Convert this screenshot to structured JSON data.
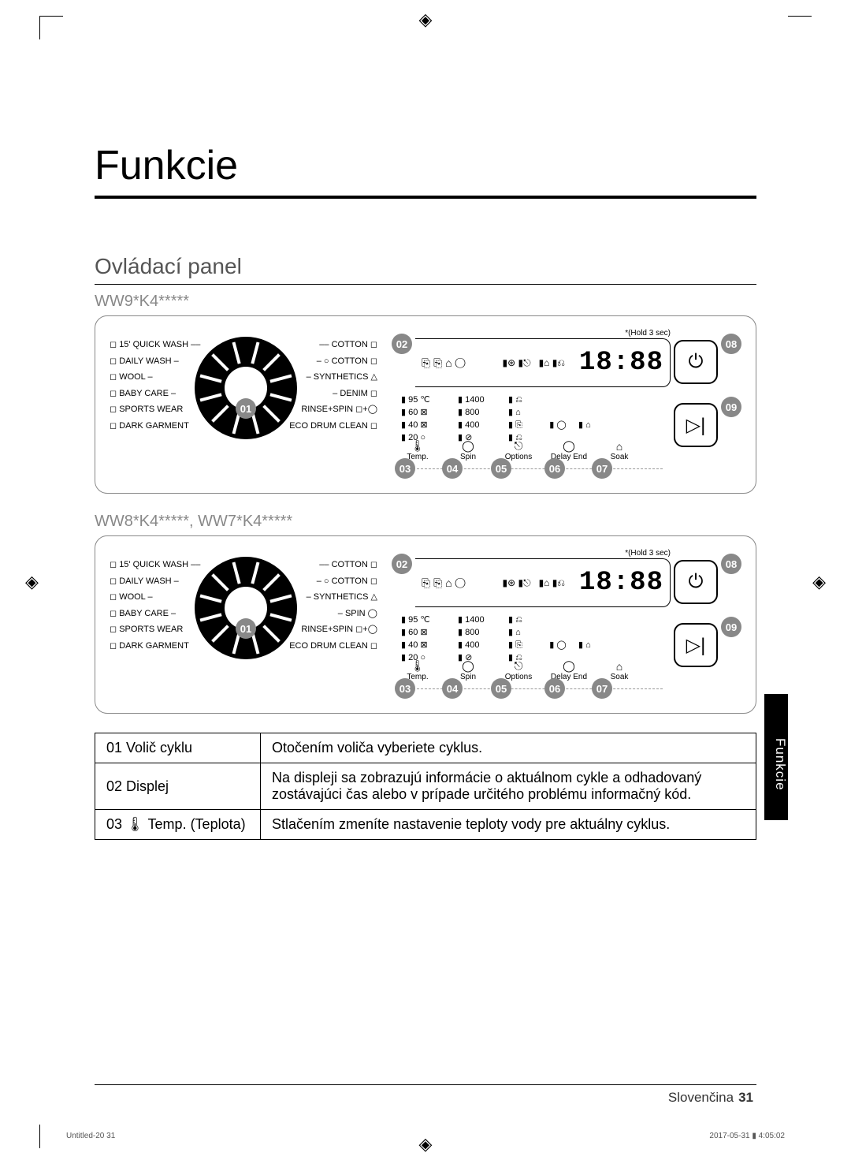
{
  "page": {
    "title": "Funkcie",
    "section": "Ovládací panel",
    "side_tab": "Funkcie",
    "language": "Slovenčina",
    "page_number": "31",
    "imprint_left": "Untitled-20   31",
    "imprint_right": "2017-05-31   ▮ 4:05:02"
  },
  "models": {
    "m1": "WW9*K4*****",
    "m2": "WW8*K4*****, WW7*K4*****"
  },
  "dial": {
    "left": [
      "15' QUICK WASH",
      "DAILY WASH",
      "WOOL",
      "BABY CARE",
      "SPORTS WEAR",
      "DARK GARMENT"
    ],
    "right_m1": [
      "COTTON",
      "COTTON",
      "SYNTHETICS",
      "DENIM",
      "RINSE+SPIN",
      "ECO DRUM CLEAN"
    ],
    "right_m2": [
      "COTTON",
      "COTTON",
      "SYNTHETICS",
      "SPIN",
      "RINSE+SPIN",
      "ECO DRUM CLEAN"
    ],
    "badges": {
      "b01": "01"
    }
  },
  "display": {
    "hold_note": "*(Hold 3 sec)",
    "seven_seg": "18:88",
    "temp_rows": [
      "▮ 95 ℃",
      "▮ 60 ⊠",
      "▮ 40 ⊠",
      "▮ 20 ○"
    ],
    "spin_rows": [
      "▮ 1400",
      "▮ 800",
      "▮ 400",
      "▮ ⊘"
    ],
    "opt_rows": [
      "▮ ⎌",
      "▮ ⌂",
      "▮ ⎘",
      "▮ ⎌"
    ],
    "labels": {
      "temp": "Temp.",
      "spin": "Spin",
      "options": "Options",
      "delay": "Delay End",
      "soak": "Soak"
    },
    "badges": {
      "b02": "02",
      "b03": "03",
      "b04": "04",
      "b05": "05",
      "b06": "06",
      "b07": "07",
      "b08": "08",
      "b09": "09"
    }
  },
  "table": {
    "r1k": "01 Volič cyklu",
    "r1v": "Otočením voliča vyberiete cyklus.",
    "r2k": "02 Displej",
    "r2v": "Na displeji sa zobrazujú informácie o aktuálnom cykle a odhadovaný zostávajúci čas alebo v prípade určitého problému informačný kód.",
    "r3k": "03 🌡 Temp. (Teplota)",
    "r3v": "Stlačením zmeníte nastavenie teploty vody pre aktuálny cyklus."
  },
  "style": {
    "badge_bg": "#888888",
    "border_color": "#000000"
  }
}
